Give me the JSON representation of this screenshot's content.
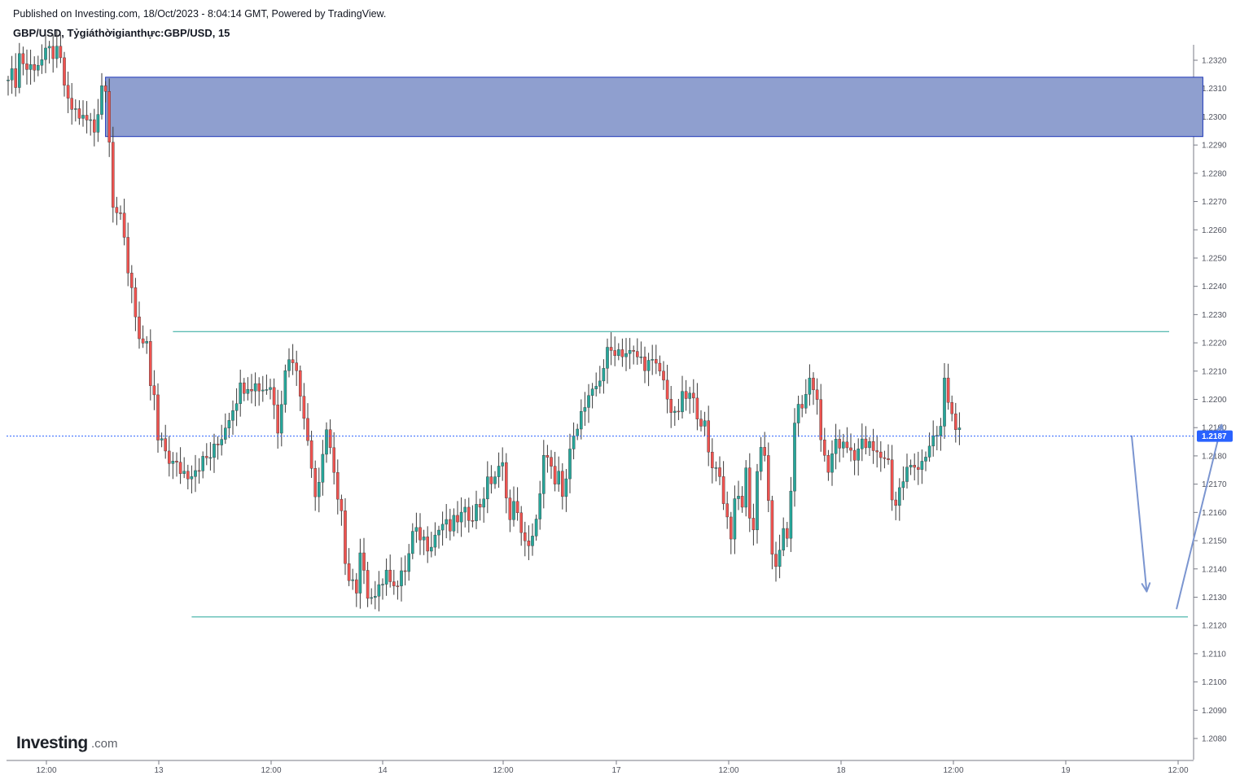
{
  "header": {
    "published": "Published on Investing.com, 18/Oct/2023 - 8:04:14 GMT, Powered by TradingView.",
    "symbol": "GBP/USD, Tỷgiáthờigianthực:GBP/USD, 15"
  },
  "logo": {
    "name": "Investing",
    "suffix": ".com"
  },
  "colors": {
    "up": "#26a69a",
    "down": "#ef5350",
    "wick": "#3a3a3a",
    "zone_fill": "#8f9fcf",
    "zone_border": "#1c35b8",
    "level_line": "#26a69a",
    "arrow": "#7b95d0",
    "badge": "#2962ff",
    "axis": "#787b86"
  },
  "chart_data": {
    "type": "candlestick",
    "title": "GBP/USD, Tỷgiáthờigianthực:GBP/USD, 15",
    "ylim": [
      1.2073,
      1.2327
    ],
    "y_ticks": [
      "1.2320",
      "1.2310",
      "1.2300",
      "1.2290",
      "1.2280",
      "1.2270",
      "1.2260",
      "1.2250",
      "1.2240",
      "1.2230",
      "1.2220",
      "1.2210",
      "1.2200",
      "1.2190",
      "1.2180",
      "1.2170",
      "1.2160",
      "1.2150",
      "1.2140",
      "1.2130",
      "1.2120",
      "1.2110",
      "1.2100",
      "1.2090",
      "1.2080"
    ],
    "x_ticks": [
      "12:00",
      "13",
      "12:00",
      "14",
      "12:00",
      "17",
      "12:00",
      "18",
      "12:00",
      "19",
      "12:00"
    ],
    "last_price": "1.2187",
    "path": [
      [
        0,
        1.2316
      ],
      [
        2,
        1.2313
      ],
      [
        3,
        1.2322
      ],
      [
        5,
        1.2317
      ],
      [
        9,
        1.232
      ],
      [
        11,
        1.2323
      ],
      [
        13,
        1.2322
      ],
      [
        14,
        1.2319
      ],
      [
        16,
        1.2304
      ],
      [
        18,
        1.2302
      ],
      [
        20,
        1.2299
      ],
      [
        22,
        1.2298
      ],
      [
        23,
        1.2295
      ],
      [
        24,
        1.2303
      ],
      [
        25,
        1.2312
      ],
      [
        26,
        1.2309
      ],
      [
        27,
        1.2294
      ],
      [
        28,
        1.227
      ],
      [
        30,
        1.2263
      ],
      [
        31,
        1.2256
      ],
      [
        32,
        1.2246
      ],
      [
        33,
        1.224
      ],
      [
        34,
        1.2231
      ],
      [
        35,
        1.2221
      ],
      [
        36,
        1.2217
      ],
      [
        37,
        1.2218
      ],
      [
        38,
        1.2205
      ],
      [
        39,
        1.22
      ],
      [
        40,
        1.2185
      ],
      [
        42,
        1.2182
      ],
      [
        43,
        1.2179
      ],
      [
        44,
        1.2177
      ],
      [
        46,
        1.2175
      ],
      [
        48,
        1.2174
      ],
      [
        50,
        1.2176
      ],
      [
        52,
        1.2178
      ],
      [
        54,
        1.218
      ],
      [
        56,
        1.2184
      ],
      [
        58,
        1.2191
      ],
      [
        60,
        1.2198
      ],
      [
        62,
        1.2204
      ],
      [
        64,
        1.2206
      ],
      [
        66,
        1.2205
      ],
      [
        68,
        1.2204
      ],
      [
        70,
        1.2205
      ],
      [
        71,
        1.2198
      ],
      [
        72,
        1.219
      ],
      [
        74,
        1.2212
      ],
      [
        76,
        1.2215
      ],
      [
        78,
        1.2203
      ],
      [
        79,
        1.2196
      ],
      [
        80,
        1.2184
      ],
      [
        82,
        1.2168
      ],
      [
        83,
        1.2172
      ],
      [
        84,
        1.2183
      ],
      [
        85,
        1.219
      ],
      [
        86,
        1.2183
      ],
      [
        87,
        1.2175
      ],
      [
        88,
        1.2165
      ],
      [
        89,
        1.2158
      ],
      [
        90,
        1.214
      ],
      [
        92,
        1.2136
      ],
      [
        93,
        1.213
      ],
      [
        94,
        1.2144
      ],
      [
        95,
        1.2138
      ],
      [
        96,
        1.2127
      ],
      [
        97,
        1.2132
      ],
      [
        98,
        1.2133
      ],
      [
        100,
        1.2136
      ],
      [
        102,
        1.2138
      ],
      [
        104,
        1.2134
      ],
      [
        105,
        1.2137
      ],
      [
        106,
        1.214
      ],
      [
        107,
        1.2145
      ],
      [
        108,
        1.2152
      ],
      [
        110,
        1.2152
      ],
      [
        112,
        1.2149
      ],
      [
        114,
        1.2152
      ],
      [
        116,
        1.2156
      ],
      [
        118,
        1.2154
      ],
      [
        120,
        1.2158
      ],
      [
        122,
        1.2159
      ],
      [
        124,
        1.216
      ],
      [
        126,
        1.2163
      ],
      [
        128,
        1.217
      ],
      [
        130,
        1.2173
      ],
      [
        132,
        1.2176
      ],
      [
        133,
        1.2168
      ],
      [
        134,
        1.2157
      ],
      [
        135,
        1.2162
      ],
      [
        136,
        1.2162
      ],
      [
        137,
        1.2151
      ],
      [
        138,
        1.2148
      ],
      [
        139,
        1.215
      ],
      [
        140,
        1.2152
      ],
      [
        141,
        1.2156
      ],
      [
        142,
        1.2165
      ],
      [
        143,
        1.2178
      ],
      [
        144,
        1.2182
      ],
      [
        145,
        1.2175
      ],
      [
        146,
        1.2168
      ],
      [
        147,
        1.2172
      ],
      [
        148,
        1.2165
      ],
      [
        149,
        1.2172
      ],
      [
        150,
        1.218
      ],
      [
        151,
        1.219
      ],
      [
        152,
        1.2192
      ],
      [
        154,
        1.2197
      ],
      [
        156,
        1.2201
      ],
      [
        158,
        1.2208
      ],
      [
        160,
        1.2216
      ],
      [
        162,
        1.2218
      ],
      [
        164,
        1.2217
      ],
      [
        166,
        1.2216
      ],
      [
        168,
        1.2215
      ],
      [
        170,
        1.2213
      ],
      [
        172,
        1.2212
      ],
      [
        174,
        1.221
      ],
      [
        176,
        1.2202
      ],
      [
        177,
        1.2196
      ],
      [
        178,
        1.2193
      ],
      [
        180,
        1.22
      ],
      [
        182,
        1.2201
      ],
      [
        184,
        1.2196
      ],
      [
        186,
        1.219
      ],
      [
        187,
        1.218
      ],
      [
        188,
        1.2176
      ],
      [
        189,
        1.2178
      ],
      [
        190,
        1.2172
      ],
      [
        191,
        1.2165
      ],
      [
        192,
        1.2158
      ],
      [
        193,
        1.2153
      ],
      [
        194,
        1.2162
      ],
      [
        195,
        1.2165
      ],
      [
        196,
        1.2163
      ],
      [
        197,
        1.2174
      ],
      [
        198,
        1.216
      ],
      [
        199,
        1.2154
      ],
      [
        200,
        1.2174
      ],
      [
        201,
        1.2185
      ],
      [
        202,
        1.218
      ],
      [
        203,
        1.2165
      ],
      [
        204,
        1.2143
      ],
      [
        205,
        1.214
      ],
      [
        206,
        1.2148
      ],
      [
        207,
        1.2152
      ],
      [
        208,
        1.2148
      ],
      [
        209,
        1.2168
      ],
      [
        210,
        1.2193
      ],
      [
        211,
        1.22
      ],
      [
        212,
        1.2195
      ],
      [
        213,
        1.22
      ],
      [
        214,
        1.2207
      ],
      [
        215,
        1.2205
      ],
      [
        216,
        1.2197
      ],
      [
        217,
        1.2188
      ],
      [
        218,
        1.2178
      ],
      [
        219,
        1.2175
      ],
      [
        220,
        1.218
      ],
      [
        221,
        1.2186
      ],
      [
        222,
        1.2184
      ],
      [
        224,
        1.2183
      ],
      [
        226,
        1.2181
      ],
      [
        228,
        1.2184
      ],
      [
        230,
        1.2183
      ],
      [
        232,
        1.218
      ],
      [
        234,
        1.218
      ],
      [
        235,
        1.2178
      ],
      [
        236,
        1.2166
      ],
      [
        237,
        1.2163
      ],
      [
        238,
        1.2168
      ],
      [
        240,
        1.2175
      ],
      [
        242,
        1.2176
      ],
      [
        244,
        1.2179
      ],
      [
        246,
        1.2182
      ],
      [
        248,
        1.2187
      ],
      [
        249,
        1.219
      ],
      [
        250,
        1.2206
      ],
      [
        251,
        1.22
      ],
      [
        252,
        1.2194
      ],
      [
        253,
        1.2192
      ],
      [
        254,
        1.2187
      ]
    ],
    "annotations": {
      "supply_zone": {
        "t0": 26,
        "t1": 319,
        "y_top": 1.2314,
        "y_bottom": 1.2293
      },
      "resistance_line": {
        "t0": 44,
        "t1": 310,
        "y": 1.2224
      },
      "support_line": {
        "t0": 49,
        "t1": 315,
        "y": 1.2123
      },
      "arrow_down": {
        "t0": 300,
        "y0": 1.2187,
        "t1": 304,
        "y1": 1.2132
      },
      "arrow_up": {
        "t0": 312,
        "y0": 1.2126,
        "t1": 324,
        "y1": 1.2191
      }
    }
  }
}
